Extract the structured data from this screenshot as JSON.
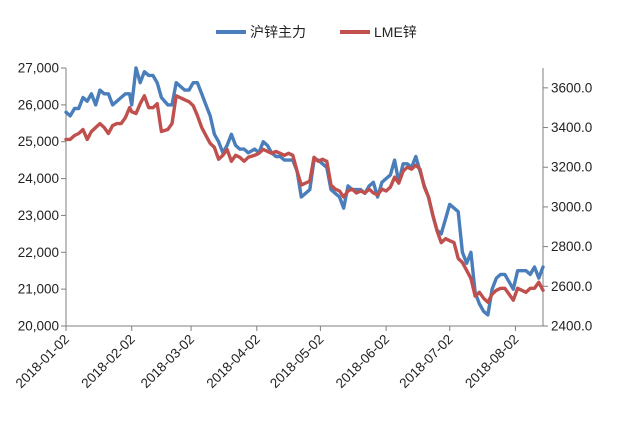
{
  "chart_data": {
    "type": "line",
    "title": "",
    "x_ticks": [
      "2018-01-02",
      "2018-02-02",
      "2018-03-02",
      "2018-04-02",
      "2018-05-02",
      "2018-06-02",
      "2018-07-02",
      "2018-08-02"
    ],
    "x_range": [
      "2018-01-02",
      "2018-08-15"
    ],
    "y_left": {
      "ylim": [
        20000,
        27000
      ],
      "ticks": [
        "20,000",
        "21,000",
        "22,000",
        "23,000",
        "24,000",
        "25,000",
        "26,000",
        "27,000"
      ]
    },
    "y_right": {
      "ylim": [
        2400,
        3700
      ],
      "ticks": [
        "2400.0",
        "2600.0",
        "2800.0",
        "3000.0",
        "3200.0",
        "3400.0",
        "3600.0"
      ]
    },
    "grid": false,
    "legend_position": "top",
    "series": [
      {
        "name": "沪锌主力",
        "axis": "left",
        "color": "#4a7ebb",
        "points": [
          [
            "2018-01-02",
            25800
          ],
          [
            "2018-01-04",
            25700
          ],
          [
            "2018-01-06",
            25900
          ],
          [
            "2018-01-08",
            25900
          ],
          [
            "2018-01-10",
            26200
          ],
          [
            "2018-01-12",
            26100
          ],
          [
            "2018-01-14",
            26300
          ],
          [
            "2018-01-16",
            26000
          ],
          [
            "2018-01-18",
            26400
          ],
          [
            "2018-01-20",
            26300
          ],
          [
            "2018-01-22",
            26300
          ],
          [
            "2018-01-24",
            26000
          ],
          [
            "2018-01-26",
            26100
          ],
          [
            "2018-01-28",
            26200
          ],
          [
            "2018-01-30",
            26300
          ],
          [
            "2018-02-01",
            26300
          ],
          [
            "2018-02-02",
            26000
          ],
          [
            "2018-02-04",
            27000
          ],
          [
            "2018-02-06",
            26600
          ],
          [
            "2018-02-08",
            26900
          ],
          [
            "2018-02-10",
            26800
          ],
          [
            "2018-02-12",
            26800
          ],
          [
            "2018-02-14",
            26600
          ],
          [
            "2018-02-16",
            26200
          ],
          [
            "2018-02-19",
            26000
          ],
          [
            "2018-02-21",
            26000
          ],
          [
            "2018-02-23",
            26600
          ],
          [
            "2018-02-25",
            26500
          ],
          [
            "2018-02-27",
            26400
          ],
          [
            "2018-02-29",
            26400
          ],
          [
            "2018-03-03",
            26600
          ],
          [
            "2018-03-05",
            26600
          ],
          [
            "2018-03-07",
            26300
          ],
          [
            "2018-03-09",
            26000
          ],
          [
            "2018-03-11",
            25700
          ],
          [
            "2018-03-13",
            25200
          ],
          [
            "2018-03-15",
            25000
          ],
          [
            "2018-03-17",
            24700
          ],
          [
            "2018-03-19",
            24900
          ],
          [
            "2018-03-21",
            25200
          ],
          [
            "2018-03-23",
            24900
          ],
          [
            "2018-03-25",
            24800
          ],
          [
            "2018-03-27",
            24800
          ],
          [
            "2018-03-29",
            24700
          ],
          [
            "2018-04-01",
            24800
          ],
          [
            "2018-04-03",
            24700
          ],
          [
            "2018-04-05",
            25000
          ],
          [
            "2018-04-07",
            24900
          ],
          [
            "2018-04-09",
            24700
          ],
          [
            "2018-04-11",
            24600
          ],
          [
            "2018-04-13",
            24600
          ],
          [
            "2018-04-15",
            24500
          ],
          [
            "2018-04-17",
            24500
          ],
          [
            "2018-04-19",
            24500
          ],
          [
            "2018-04-21",
            24200
          ],
          [
            "2018-04-23",
            23500
          ],
          [
            "2018-04-25",
            23600
          ],
          [
            "2018-04-27",
            23700
          ],
          [
            "2018-04-29",
            24500
          ],
          [
            "2018-05-01",
            24500
          ],
          [
            "2018-05-03",
            24400
          ],
          [
            "2018-05-05",
            24300
          ],
          [
            "2018-05-07",
            23700
          ],
          [
            "2018-05-09",
            23600
          ],
          [
            "2018-05-11",
            23500
          ],
          [
            "2018-05-13",
            23200
          ],
          [
            "2018-05-15",
            23800
          ],
          [
            "2018-05-17",
            23700
          ],
          [
            "2018-05-19",
            23700
          ],
          [
            "2018-05-21",
            23700
          ],
          [
            "2018-05-23",
            23600
          ],
          [
            "2018-05-25",
            23800
          ],
          [
            "2018-05-27",
            23900
          ],
          [
            "2018-05-29",
            23500
          ],
          [
            "2018-05-31",
            23900
          ],
          [
            "2018-06-02",
            24000
          ],
          [
            "2018-06-04",
            24100
          ],
          [
            "2018-06-06",
            24500
          ],
          [
            "2018-06-08",
            23900
          ],
          [
            "2018-06-10",
            24400
          ],
          [
            "2018-06-12",
            24400
          ],
          [
            "2018-06-14",
            24300
          ],
          [
            "2018-06-16",
            24600
          ],
          [
            "2018-06-18",
            24200
          ],
          [
            "2018-06-20",
            23800
          ],
          [
            "2018-06-22",
            23500
          ],
          [
            "2018-06-24",
            23000
          ],
          [
            "2018-06-26",
            22600
          ],
          [
            "2018-06-28",
            22500
          ],
          [
            "2018-06-30",
            22900
          ],
          [
            "2018-07-02",
            23300
          ],
          [
            "2018-07-04",
            23200
          ],
          [
            "2018-07-06",
            23100
          ],
          [
            "2018-07-08",
            22000
          ],
          [
            "2018-07-10",
            21700
          ],
          [
            "2018-07-12",
            22000
          ],
          [
            "2018-07-14",
            20900
          ],
          [
            "2018-07-16",
            20600
          ],
          [
            "2018-07-18",
            20400
          ],
          [
            "2018-07-20",
            20300
          ],
          [
            "2018-07-22",
            21000
          ],
          [
            "2018-07-24",
            21300
          ],
          [
            "2018-07-26",
            21400
          ],
          [
            "2018-07-28",
            21400
          ],
          [
            "2018-07-30",
            21200
          ],
          [
            "2018-08-01",
            21000
          ],
          [
            "2018-08-03",
            21500
          ],
          [
            "2018-08-05",
            21500
          ],
          [
            "2018-08-07",
            21500
          ],
          [
            "2018-08-09",
            21400
          ],
          [
            "2018-08-11",
            21600
          ],
          [
            "2018-08-13",
            21300
          ],
          [
            "2018-08-15",
            21600
          ]
        ]
      },
      {
        "name": "LME锌",
        "axis": "right",
        "color": "#c0504d",
        "points": [
          [
            "2018-01-02",
            3340
          ],
          [
            "2018-01-04",
            3340
          ],
          [
            "2018-01-06",
            3360
          ],
          [
            "2018-01-08",
            3370
          ],
          [
            "2018-01-10",
            3390
          ],
          [
            "2018-01-12",
            3340
          ],
          [
            "2018-01-14",
            3380
          ],
          [
            "2018-01-16",
            3400
          ],
          [
            "2018-01-18",
            3420
          ],
          [
            "2018-01-20",
            3400
          ],
          [
            "2018-01-22",
            3370
          ],
          [
            "2018-01-24",
            3410
          ],
          [
            "2018-01-26",
            3420
          ],
          [
            "2018-01-28",
            3420
          ],
          [
            "2018-01-30",
            3450
          ],
          [
            "2018-02-01",
            3500
          ],
          [
            "2018-02-02",
            3480
          ],
          [
            "2018-02-04",
            3470
          ],
          [
            "2018-02-06",
            3520
          ],
          [
            "2018-02-08",
            3560
          ],
          [
            "2018-02-10",
            3500
          ],
          [
            "2018-02-12",
            3500
          ],
          [
            "2018-02-14",
            3520
          ],
          [
            "2018-02-16",
            3380
          ],
          [
            "2018-02-19",
            3390
          ],
          [
            "2018-02-21",
            3420
          ],
          [
            "2018-02-23",
            3560
          ],
          [
            "2018-02-25",
            3550
          ],
          [
            "2018-02-27",
            3540
          ],
          [
            "2018-02-29",
            3530
          ],
          [
            "2018-03-03",
            3510
          ],
          [
            "2018-03-05",
            3460
          ],
          [
            "2018-03-07",
            3400
          ],
          [
            "2018-03-09",
            3360
          ],
          [
            "2018-03-11",
            3320
          ],
          [
            "2018-03-13",
            3300
          ],
          [
            "2018-03-15",
            3240
          ],
          [
            "2018-03-17",
            3260
          ],
          [
            "2018-03-19",
            3290
          ],
          [
            "2018-03-21",
            3230
          ],
          [
            "2018-03-23",
            3260
          ],
          [
            "2018-03-25",
            3250
          ],
          [
            "2018-03-27",
            3230
          ],
          [
            "2018-03-29",
            3250
          ],
          [
            "2018-04-01",
            3260
          ],
          [
            "2018-04-03",
            3270
          ],
          [
            "2018-04-05",
            3290
          ],
          [
            "2018-04-07",
            3280
          ],
          [
            "2018-04-09",
            3270
          ],
          [
            "2018-04-11",
            3280
          ],
          [
            "2018-04-13",
            3270
          ],
          [
            "2018-04-15",
            3260
          ],
          [
            "2018-04-17",
            3270
          ],
          [
            "2018-04-19",
            3260
          ],
          [
            "2018-04-21",
            3180
          ],
          [
            "2018-04-23",
            3110
          ],
          [
            "2018-04-25",
            3120
          ],
          [
            "2018-04-27",
            3130
          ],
          [
            "2018-04-29",
            3250
          ],
          [
            "2018-05-01",
            3230
          ],
          [
            "2018-05-03",
            3240
          ],
          [
            "2018-05-05",
            3230
          ],
          [
            "2018-05-07",
            3110
          ],
          [
            "2018-05-09",
            3090
          ],
          [
            "2018-05-11",
            3080
          ],
          [
            "2018-05-13",
            3050
          ],
          [
            "2018-05-15",
            3080
          ],
          [
            "2018-05-17",
            3090
          ],
          [
            "2018-05-19",
            3070
          ],
          [
            "2018-05-21",
            3080
          ],
          [
            "2018-05-23",
            3070
          ],
          [
            "2018-05-25",
            3090
          ],
          [
            "2018-05-27",
            3070
          ],
          [
            "2018-05-29",
            3060
          ],
          [
            "2018-05-31",
            3090
          ],
          [
            "2018-06-02",
            3080
          ],
          [
            "2018-06-04",
            3100
          ],
          [
            "2018-06-06",
            3150
          ],
          [
            "2018-06-08",
            3120
          ],
          [
            "2018-06-10",
            3180
          ],
          [
            "2018-06-12",
            3200
          ],
          [
            "2018-06-14",
            3190
          ],
          [
            "2018-06-16",
            3210
          ],
          [
            "2018-06-18",
            3190
          ],
          [
            "2018-06-20",
            3100
          ],
          [
            "2018-06-22",
            3050
          ],
          [
            "2018-06-24",
            2960
          ],
          [
            "2018-06-26",
            2880
          ],
          [
            "2018-06-28",
            2820
          ],
          [
            "2018-06-30",
            2840
          ],
          [
            "2018-07-02",
            2830
          ],
          [
            "2018-07-04",
            2820
          ],
          [
            "2018-07-06",
            2740
          ],
          [
            "2018-07-08",
            2720
          ],
          [
            "2018-07-10",
            2680
          ],
          [
            "2018-07-12",
            2640
          ],
          [
            "2018-07-14",
            2550
          ],
          [
            "2018-07-16",
            2570
          ],
          [
            "2018-07-18",
            2540
          ],
          [
            "2018-07-20",
            2520
          ],
          [
            "2018-07-22",
            2560
          ],
          [
            "2018-07-24",
            2580
          ],
          [
            "2018-07-26",
            2590
          ],
          [
            "2018-07-28",
            2590
          ],
          [
            "2018-07-30",
            2560
          ],
          [
            "2018-08-01",
            2530
          ],
          [
            "2018-08-03",
            2590
          ],
          [
            "2018-08-05",
            2580
          ],
          [
            "2018-08-07",
            2570
          ],
          [
            "2018-08-09",
            2590
          ],
          [
            "2018-08-11",
            2590
          ],
          [
            "2018-08-13",
            2620
          ],
          [
            "2018-08-15",
            2580
          ]
        ]
      }
    ]
  }
}
